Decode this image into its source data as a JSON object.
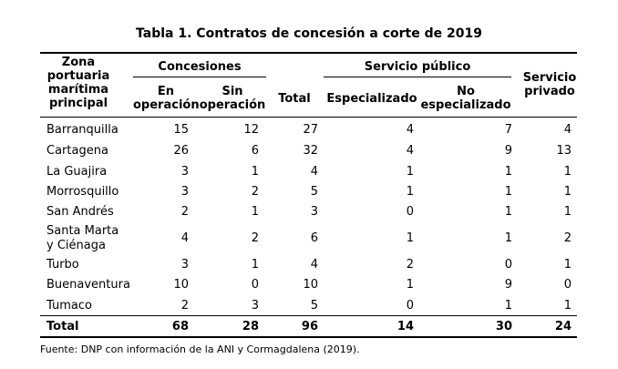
{
  "title": "Tabla 1. Contratos de concesión a corte de 2019",
  "headers": {
    "zone": [
      "Zona",
      "portuaria",
      "marítima",
      "principal"
    ],
    "concesiones": "Concesiones",
    "en_operacion": [
      "En",
      "operación"
    ],
    "sin_operacion": [
      "Sin",
      "operación"
    ],
    "total": "Total",
    "servicio_publico": "Servicio público",
    "especializado": "Especializado",
    "no_especializado": [
      "No",
      "especializado"
    ],
    "servicio_privado": [
      "Servicio",
      "privado"
    ]
  },
  "rows": [
    {
      "zone": [
        "Barranquilla"
      ],
      "values": [
        "15",
        "12",
        "27",
        "4",
        "7",
        "4"
      ]
    },
    {
      "zone": [
        "Cartagena"
      ],
      "values": [
        "26",
        "6",
        "32",
        "4",
        "9",
        "13"
      ]
    },
    {
      "zone": [
        "La Guajira"
      ],
      "values": [
        "3",
        "1",
        "4",
        "1",
        "1",
        "1"
      ]
    },
    {
      "zone": [
        "Morrosquillo"
      ],
      "values": [
        "3",
        "2",
        "5",
        "1",
        "1",
        "1"
      ]
    },
    {
      "zone": [
        "San Andrés"
      ],
      "values": [
        "2",
        "1",
        "3",
        "0",
        "1",
        "1"
      ]
    },
    {
      "zone": [
        "Santa Marta",
        "y Ciénaga"
      ],
      "values": [
        "4",
        "2",
        "6",
        "1",
        "1",
        "2"
      ]
    },
    {
      "zone": [
        "Turbo"
      ],
      "values": [
        "3",
        "1",
        "4",
        "2",
        "0",
        "1"
      ]
    },
    {
      "zone": [
        "Buenaventura"
      ],
      "values": [
        "10",
        "0",
        "10",
        "1",
        "9",
        "0"
      ]
    },
    {
      "zone": [
        "Tumaco"
      ],
      "values": [
        "2",
        "3",
        "5",
        "0",
        "1",
        "1"
      ]
    }
  ],
  "total_row": {
    "label": "Total",
    "values": [
      "68",
      "28",
      "96",
      "14",
      "30",
      "24"
    ]
  },
  "source": "Fuente: DNP con información de la ANI y Cormagdalena (2019)."
}
